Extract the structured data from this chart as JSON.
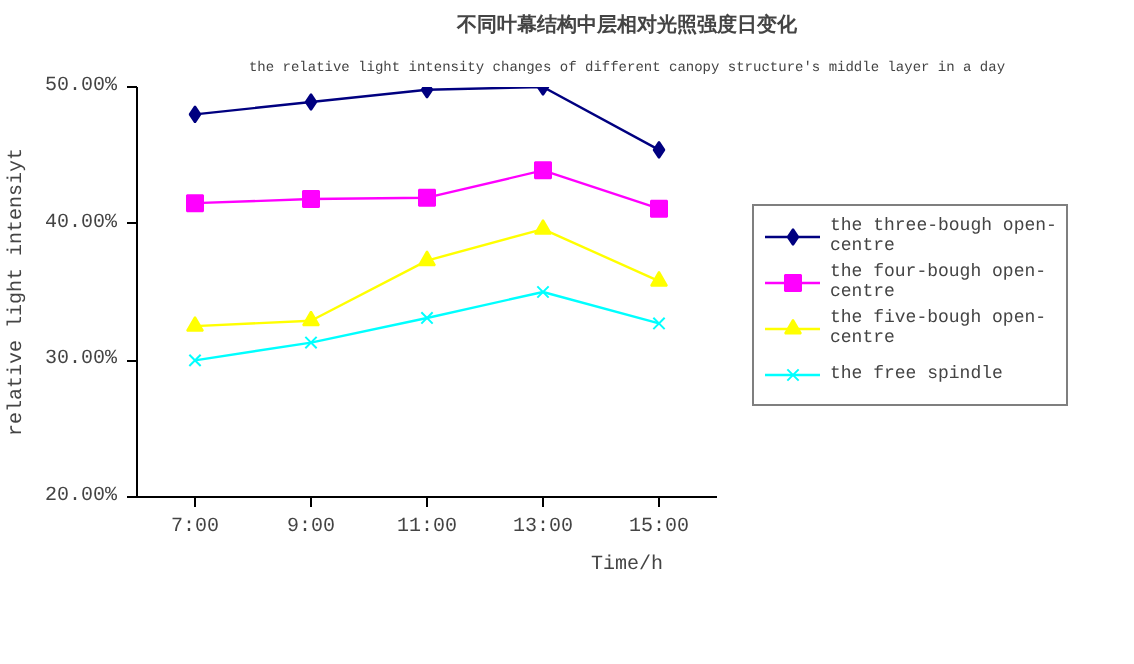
{
  "chart_data": {
    "type": "line",
    "title": "不同叶幕结构中层相对光照强度日变化",
    "subtitle": "the relative light intensity changes of different canopy structure's middle layer in a day",
    "xlabel": "Time/h",
    "ylabel": "relative light intensiyt",
    "categories": [
      "7:00",
      "9:00",
      "11:00",
      "13:00",
      "15:00"
    ],
    "series": [
      {
        "name": "the three-bough open-centre",
        "color": "#000080",
        "marker": "diamond",
        "values": [
          48.0,
          48.9,
          49.8,
          50.0,
          45.4
        ]
      },
      {
        "name": "the four-bough open-centre",
        "color": "#ff00ff",
        "marker": "square",
        "values": [
          41.5,
          41.8,
          41.9,
          43.9,
          41.1
        ]
      },
      {
        "name": "the five-bough open-centre",
        "color": "#ffff00",
        "marker": "triangle",
        "values": [
          32.5,
          32.9,
          37.3,
          39.6,
          35.8
        ]
      },
      {
        "name": "the free spindle",
        "color": "#00ffff",
        "marker": "cross",
        "values": [
          30.0,
          31.3,
          33.1,
          35.0,
          32.7
        ]
      }
    ],
    "ylim": [
      20,
      50
    ],
    "yticks": [
      {
        "value": 20,
        "label": "20.00%"
      },
      {
        "value": 30,
        "label": "30.00%"
      },
      {
        "value": 40,
        "label": "40.00%"
      },
      {
        "value": 50,
        "label": "50.00%"
      }
    ],
    "legend": "right"
  }
}
